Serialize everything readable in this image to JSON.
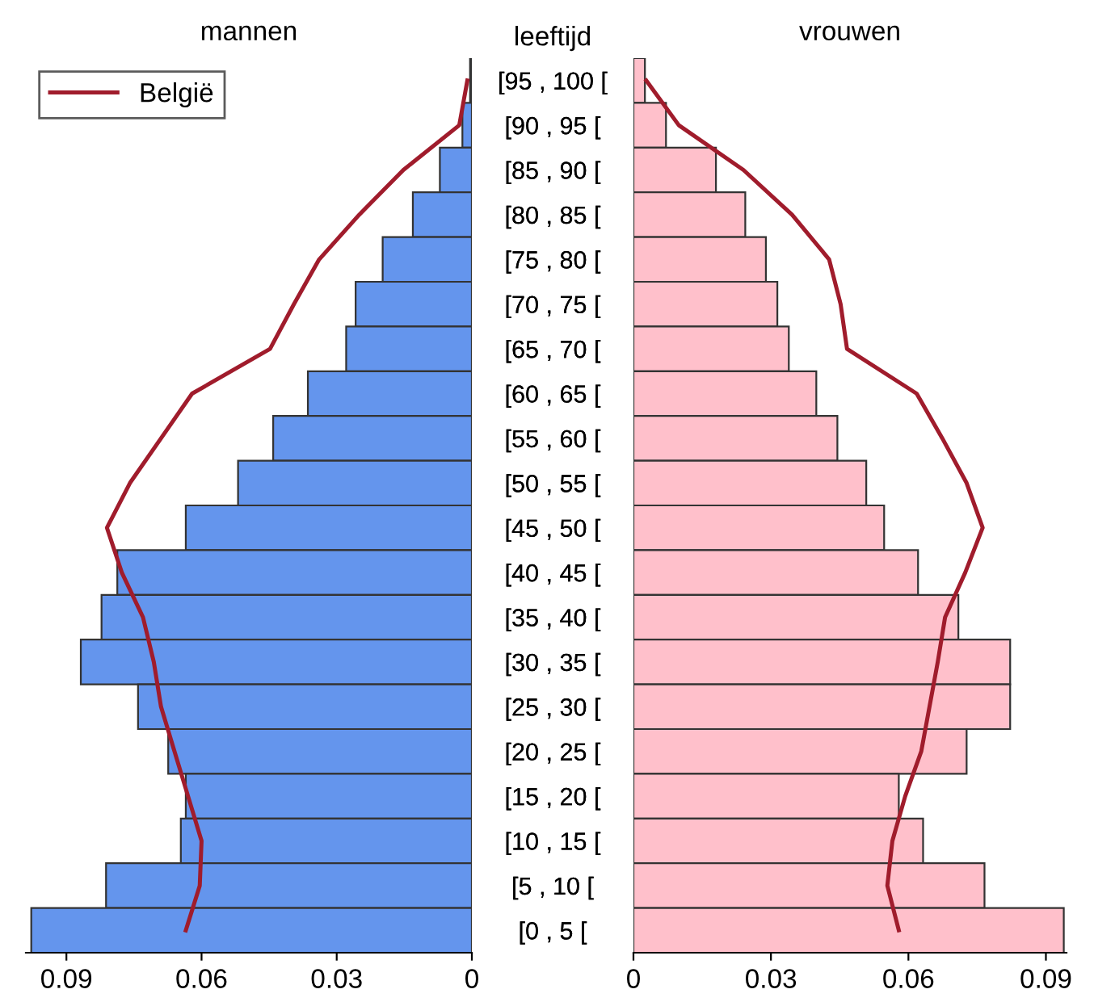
{
  "chart_data": [
    {
      "type": "bar",
      "orientation": "horizontal",
      "title": "mannen",
      "categories": [
        "[95 , 100 [",
        "[90 , 95 [",
        "[85 , 90 [",
        "[80 , 85 [",
        "[75 , 80 [",
        "[70 , 75 [",
        "[65 , 70 [",
        "[60 , 65 [",
        "[55 , 60 [",
        "[50 , 55 [",
        "[45 , 50 [",
        "[40 , 45 [",
        "[35 , 40 [",
        "[30 , 35 [",
        "[25 , 30 [",
        "[20 , 25 [",
        "[15 , 20 [",
        "[10 , 15 [",
        "[5 , 10 [",
        "[0 , 5 ["
      ],
      "series": [
        {
          "type": "bar",
          "color": "#6495ed",
          "values": [
            0.0004,
            0.0021,
            0.0071,
            0.0131,
            0.0198,
            0.0258,
            0.0279,
            0.0364,
            0.0441,
            0.0519,
            0.0635,
            0.0787,
            0.0822,
            0.0868,
            0.0741,
            0.0674,
            0.0635,
            0.0646,
            0.0812,
            0.0978
          ]
        },
        {
          "type": "line",
          "name": "België",
          "color": "#a01c2c",
          "values": [
            0.001,
            0.0028,
            0.0152,
            0.025,
            0.0339,
            0.0395,
            0.0448,
            0.0621,
            0.069,
            0.0759,
            0.081,
            0.0777,
            0.073,
            0.0706,
            0.069,
            0.066,
            0.063,
            0.06,
            0.0604,
            0.0635
          ]
        }
      ],
      "xlim": [
        0.099,
        0
      ],
      "xticks": [
        0.09,
        0.06,
        0.03,
        0
      ],
      "legend": "top left",
      "grid": false
    },
    {
      "type": "bar",
      "orientation": "horizontal",
      "title": "vrouwen",
      "ylabel": "leeftijd",
      "categories": [
        "[95 , 100 [",
        "[90 , 95 [",
        "[85 , 90 [",
        "[80 , 85 [",
        "[75 , 80 [",
        "[70 , 75 [",
        "[65 , 70 [",
        "[60 , 65 [",
        "[55 , 60 [",
        "[50 , 55 [",
        "[45 , 50 [",
        "[40 , 45 [",
        "[35 , 40 [",
        "[30 , 35 [",
        "[25 , 30 [",
        "[20 , 25 [",
        "[15 , 20 [",
        "[10 , 15 [",
        "[5 , 10 [",
        "[0 , 5 ["
      ],
      "series": [
        {
          "type": "bar",
          "color": "#ffc0cb",
          "values": [
            0.0025,
            0.0071,
            0.018,
            0.0244,
            0.0289,
            0.0314,
            0.0339,
            0.0399,
            0.0445,
            0.0508,
            0.0547,
            0.0621,
            0.0709,
            0.0822,
            0.0822,
            0.0727,
            0.0579,
            0.0632,
            0.0766,
            0.0939
          ]
        },
        {
          "type": "line",
          "color": "#a01c2c",
          "values": [
            0.0028,
            0.0099,
            0.024,
            0.0346,
            0.0427,
            0.0452,
            0.0466,
            0.0618,
            0.0674,
            0.0727,
            0.0762,
            0.0724,
            0.068,
            0.0664,
            0.0646,
            0.0628,
            0.0593,
            0.0565,
            0.0554,
            0.0579
          ]
        }
      ],
      "xlim": [
        0,
        0.0945
      ],
      "xticks": [
        0,
        0.03,
        0.06,
        0.09
      ],
      "legend": false,
      "grid": false
    }
  ]
}
